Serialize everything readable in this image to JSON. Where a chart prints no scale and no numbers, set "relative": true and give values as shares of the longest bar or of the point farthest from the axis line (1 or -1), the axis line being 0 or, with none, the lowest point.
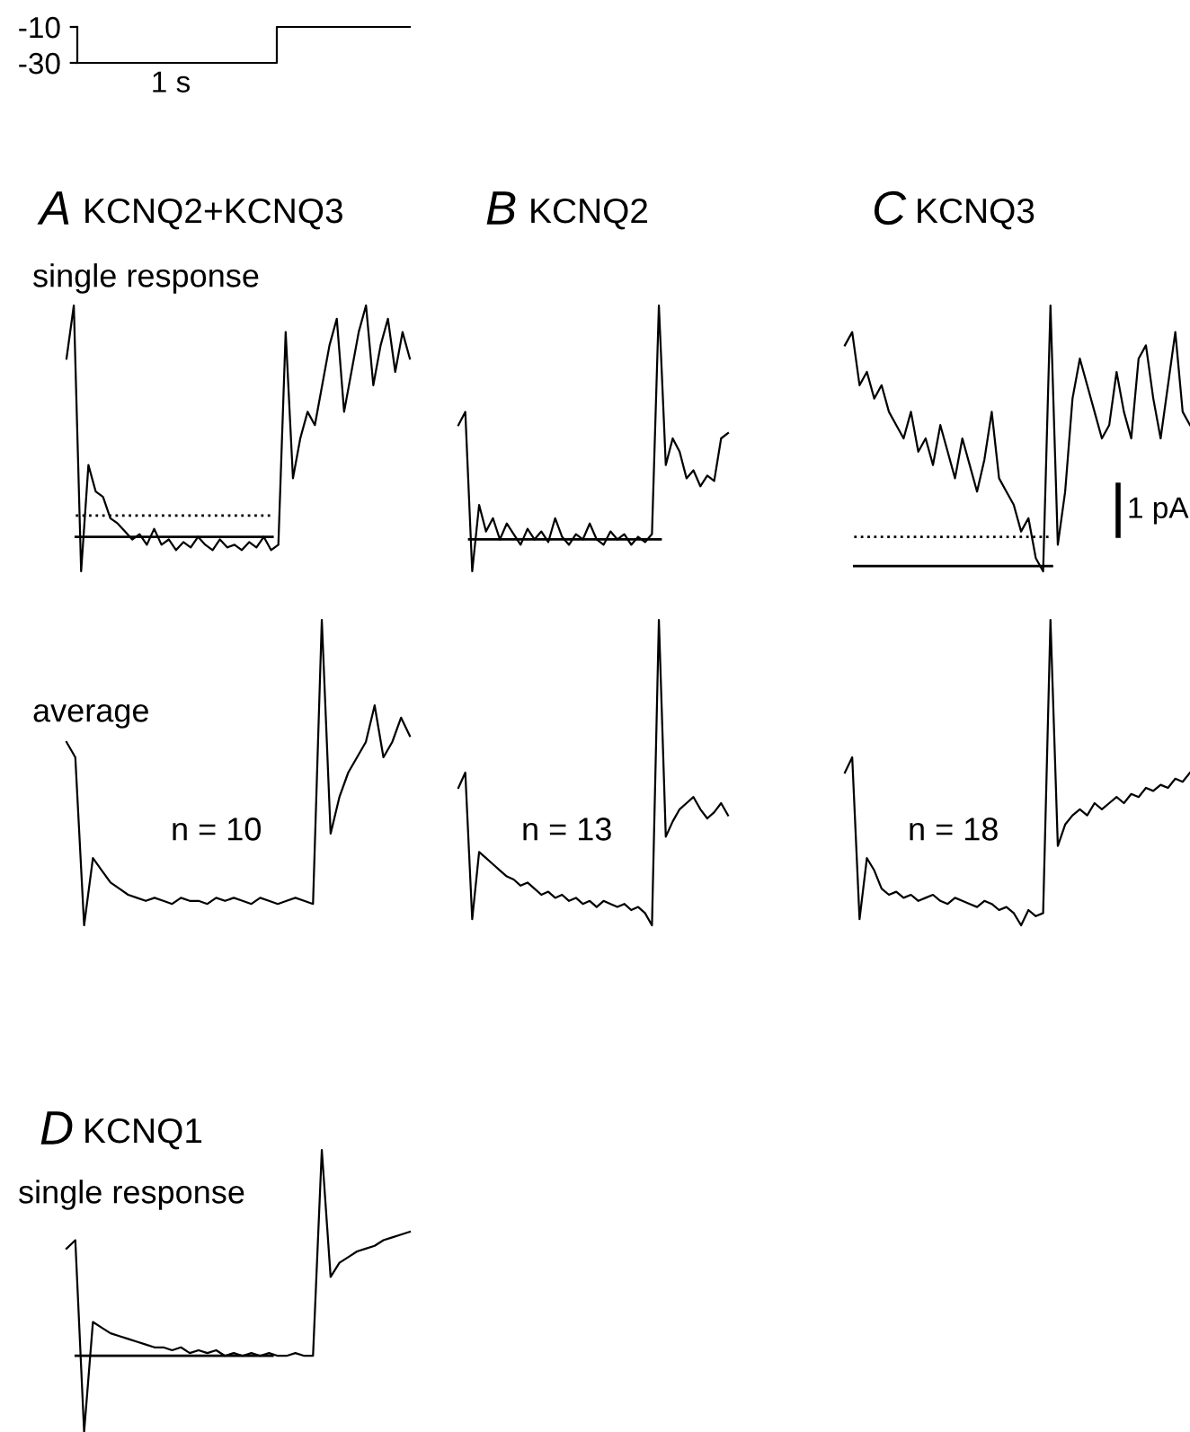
{
  "chart_data": [
    {
      "type": "step",
      "categories": [
        null,
        null,
        null,
        null,
        null,
        null
      ],
      "values": [
        -30,
        -30,
        -30,
        -10,
        -10,
        -10
      ],
      "color": "#000000",
      "ylim": [
        -30,
        -10
      ],
      "yticks": [
        -10,
        -30
      ],
      "xlabel": "1 s",
      "tick_labels": "y",
      "grid": false
    },
    {
      "type": "line",
      "relative": true,
      "title": "A",
      "subtitle": "KCNQ2+KCNQ3",
      "annotations": [
        "single response"
      ],
      "categories": [
        null,
        null,
        null,
        null,
        null,
        null,
        null,
        null,
        null,
        null,
        null,
        null,
        null,
        null,
        null,
        null,
        null,
        null,
        null,
        null,
        null,
        null,
        null,
        null,
        null,
        null,
        null,
        null,
        null,
        null,
        null,
        null,
        null,
        null,
        null,
        null,
        null,
        null,
        null,
        null,
        null,
        null,
        null,
        null,
        null,
        null,
        null,
        null
      ],
      "series": [
        {
          "color": "#000000",
          "values": [
            0.8,
            1.0,
            0.0,
            0.4,
            0.3,
            0.28,
            0.2,
            0.18,
            0.15,
            0.12,
            0.14,
            0.1,
            0.16,
            0.1,
            0.12,
            0.08,
            0.11,
            0.09,
            0.13,
            0.1,
            0.08,
            0.12,
            0.09,
            0.1,
            0.08,
            0.11,
            0.09,
            0.13,
            0.08,
            0.1,
            0.9,
            0.35,
            0.5,
            0.6,
            0.55,
            0.7,
            0.85,
            0.95,
            0.6,
            0.75,
            0.9,
            1.0,
            0.7,
            0.85,
            0.95,
            0.75,
            0.9,
            0.8
          ]
        }
      ],
      "ref_lines": [
        {
          "axis": "y",
          "value": 0.13,
          "color": "#000000",
          "line_style": "solid"
        },
        {
          "axis": "y",
          "value": 0.21,
          "color": "#000000",
          "line_style": "dotted"
        }
      ]
    },
    {
      "type": "line",
      "relative": true,
      "title": "B",
      "subtitle": "KCNQ2",
      "categories": [
        null,
        null,
        null,
        null,
        null,
        null,
        null,
        null,
        null,
        null,
        null,
        null,
        null,
        null,
        null,
        null,
        null,
        null,
        null,
        null,
        null,
        null,
        null,
        null,
        null,
        null,
        null,
        null,
        null,
        null,
        null,
        null,
        null,
        null,
        null,
        null,
        null,
        null,
        null,
        null
      ],
      "series": [
        {
          "color": "#000000",
          "values": [
            0.55,
            0.6,
            0.0,
            0.25,
            0.15,
            0.2,
            0.12,
            0.18,
            0.14,
            0.1,
            0.16,
            0.12,
            0.15,
            0.11,
            0.2,
            0.13,
            0.1,
            0.14,
            0.12,
            0.18,
            0.12,
            0.1,
            0.15,
            0.12,
            0.14,
            0.1,
            0.13,
            0.11,
            0.14,
            1.0,
            0.4,
            0.5,
            0.45,
            0.35,
            0.38,
            0.32,
            0.36,
            0.34,
            0.5,
            0.52
          ]
        }
      ],
      "ref_lines": [
        {
          "axis": "y",
          "value": 0.12,
          "color": "#000000",
          "line_style": "solid"
        }
      ]
    },
    {
      "type": "line",
      "relative": true,
      "title": "C",
      "subtitle": "KCNQ3",
      "annotations": [
        "1 pA"
      ],
      "categories": [
        null,
        null,
        null,
        null,
        null,
        null,
        null,
        null,
        null,
        null,
        null,
        null,
        null,
        null,
        null,
        null,
        null,
        null,
        null,
        null,
        null,
        null,
        null,
        null,
        null,
        null,
        null,
        null,
        null,
        null,
        null,
        null,
        null,
        null,
        null,
        null,
        null,
        null,
        null,
        null,
        null,
        null,
        null,
        null,
        null,
        null,
        null,
        null
      ],
      "series": [
        {
          "color": "#000000",
          "values": [
            0.85,
            0.9,
            0.7,
            0.75,
            0.65,
            0.7,
            0.6,
            0.55,
            0.5,
            0.6,
            0.45,
            0.5,
            0.4,
            0.55,
            0.45,
            0.35,
            0.5,
            0.4,
            0.3,
            0.42,
            0.6,
            0.35,
            0.3,
            0.25,
            0.15,
            0.2,
            0.05,
            0.0,
            1.0,
            0.1,
            0.3,
            0.65,
            0.8,
            0.7,
            0.6,
            0.5,
            0.55,
            0.75,
            0.6,
            0.5,
            0.8,
            0.85,
            0.65,
            0.5,
            0.7,
            0.9,
            0.6,
            0.55
          ]
        }
      ],
      "ref_lines": [
        {
          "axis": "y",
          "value": 0.02,
          "color": "#000000",
          "line_style": "solid"
        },
        {
          "axis": "y",
          "value": 0.13,
          "color": "#000000",
          "line_style": "dotted"
        }
      ]
    },
    {
      "type": "line",
      "relative": true,
      "annotations": [
        "average",
        "n = 10"
      ],
      "categories": [
        null,
        null,
        null,
        null,
        null,
        null,
        null,
        null,
        null,
        null,
        null,
        null,
        null,
        null,
        null,
        null,
        null,
        null,
        null,
        null,
        null,
        null,
        null,
        null,
        null,
        null,
        null,
        null,
        null,
        null,
        null,
        null,
        null,
        null,
        null,
        null,
        null,
        null,
        null,
        null
      ],
      "series": [
        {
          "color": "#000000",
          "values": [
            0.6,
            0.55,
            0.0,
            0.22,
            0.18,
            0.14,
            0.12,
            0.1,
            0.09,
            0.08,
            0.09,
            0.08,
            0.07,
            0.09,
            0.08,
            0.08,
            0.07,
            0.09,
            0.08,
            0.09,
            0.08,
            0.07,
            0.09,
            0.08,
            0.07,
            0.08,
            0.09,
            0.08,
            0.07,
            1.0,
            0.3,
            0.42,
            0.5,
            0.55,
            0.6,
            0.72,
            0.55,
            0.6,
            0.68,
            0.62
          ]
        }
      ]
    },
    {
      "type": "line",
      "relative": true,
      "annotations": [
        "n = 13"
      ],
      "categories": [
        null,
        null,
        null,
        null,
        null,
        null,
        null,
        null,
        null,
        null,
        null,
        null,
        null,
        null,
        null,
        null,
        null,
        null,
        null,
        null,
        null,
        null,
        null,
        null,
        null,
        null,
        null,
        null,
        null,
        null,
        null,
        null,
        null,
        null,
        null,
        null,
        null,
        null,
        null,
        null
      ],
      "series": [
        {
          "color": "#000000",
          "values": [
            0.45,
            0.5,
            0.02,
            0.24,
            0.22,
            0.2,
            0.18,
            0.16,
            0.15,
            0.13,
            0.14,
            0.12,
            0.1,
            0.11,
            0.09,
            0.1,
            0.08,
            0.09,
            0.07,
            0.08,
            0.06,
            0.08,
            0.07,
            0.06,
            0.07,
            0.05,
            0.06,
            0.04,
            0.0,
            1.0,
            0.29,
            0.34,
            0.38,
            0.4,
            0.42,
            0.38,
            0.35,
            0.37,
            0.4,
            0.36
          ]
        }
      ]
    },
    {
      "type": "line",
      "relative": true,
      "annotations": [
        "n = 18"
      ],
      "categories": [
        null,
        null,
        null,
        null,
        null,
        null,
        null,
        null,
        null,
        null,
        null,
        null,
        null,
        null,
        null,
        null,
        null,
        null,
        null,
        null,
        null,
        null,
        null,
        null,
        null,
        null,
        null,
        null,
        null,
        null,
        null,
        null,
        null,
        null,
        null,
        null,
        null,
        null,
        null,
        null,
        null,
        null,
        null,
        null,
        null,
        null,
        null,
        null
      ],
      "series": [
        {
          "color": "#000000",
          "values": [
            0.5,
            0.55,
            0.02,
            0.22,
            0.18,
            0.12,
            0.1,
            0.11,
            0.09,
            0.1,
            0.08,
            0.09,
            0.1,
            0.08,
            0.07,
            0.09,
            0.08,
            0.07,
            0.06,
            0.08,
            0.07,
            0.05,
            0.06,
            0.04,
            0.0,
            0.05,
            0.03,
            0.04,
            1.0,
            0.26,
            0.33,
            0.36,
            0.38,
            0.36,
            0.4,
            0.38,
            0.4,
            0.42,
            0.4,
            0.43,
            0.42,
            0.45,
            0.44,
            0.46,
            0.45,
            0.48,
            0.47,
            0.5
          ]
        }
      ]
    },
    {
      "type": "line",
      "relative": true,
      "title": "D",
      "subtitle": "KCNQ1",
      "annotations": [
        "single response"
      ],
      "categories": [
        null,
        null,
        null,
        null,
        null,
        null,
        null,
        null,
        null,
        null,
        null,
        null,
        null,
        null,
        null,
        null,
        null,
        null,
        null,
        null,
        null,
        null,
        null,
        null,
        null,
        null,
        null,
        null,
        null,
        null,
        null,
        null,
        null,
        null,
        null,
        null,
        null,
        null,
        null,
        null
      ],
      "series": [
        {
          "color": "#000000",
          "values": [
            0.65,
            0.68,
            0.0,
            0.39,
            0.37,
            0.35,
            0.34,
            0.33,
            0.32,
            0.31,
            0.3,
            0.3,
            0.29,
            0.3,
            0.28,
            0.29,
            0.28,
            0.29,
            0.27,
            0.28,
            0.27,
            0.28,
            0.27,
            0.28,
            0.27,
            0.27,
            0.28,
            0.27,
            0.27,
            1.0,
            0.55,
            0.6,
            0.62,
            0.64,
            0.65,
            0.66,
            0.68,
            0.69,
            0.7,
            0.71
          ]
        }
      ],
      "ref_lines": [
        {
          "axis": "y",
          "value": 0.27,
          "color": "#000000",
          "line_style": "solid"
        }
      ]
    }
  ]
}
